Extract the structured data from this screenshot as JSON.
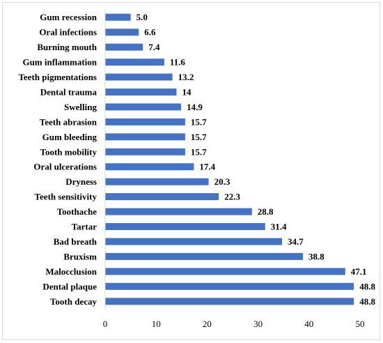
{
  "chart_data": {
    "type": "bar",
    "orientation": "horizontal",
    "categories": [
      "Gum recession",
      "Oral infections",
      "Burning mouth",
      "Gum inflammation",
      "Teeth pigmentations",
      "Dental trauma",
      "Swelling",
      "Teeth abrasion",
      "Gum bleeding",
      "Tooth mobility",
      "Oral ulcerations",
      "Dryness",
      "Teeth sensitivity",
      "Toothache",
      "Tartar",
      "Bad breath",
      "Bruxism",
      "Malocclusion",
      "Dental plaque",
      "Tooth decay"
    ],
    "values": [
      5.0,
      6.6,
      7.4,
      11.6,
      13.2,
      14,
      14.9,
      15.7,
      15.7,
      15.7,
      17.4,
      20.3,
      22.3,
      28.8,
      31.4,
      34.7,
      38.8,
      47.1,
      48.8,
      48.8
    ],
    "value_labels": [
      "5.0",
      "6.6",
      "7.4",
      "11.6",
      "13.2",
      "14",
      "14.9",
      "15.7",
      "15.7",
      "15.7",
      "17.4",
      "20.3",
      "22.3",
      "28.8",
      "31.4",
      "34.7",
      "38.8",
      "47.1",
      "48.8",
      "48.8"
    ],
    "x_ticks": [
      0,
      10,
      20,
      30,
      40,
      50
    ],
    "xlim": [
      0,
      50
    ],
    "title": "",
    "xlabel": "",
    "ylabel": "",
    "bar_color": "#4472c4",
    "grid": false,
    "legend": "none"
  }
}
